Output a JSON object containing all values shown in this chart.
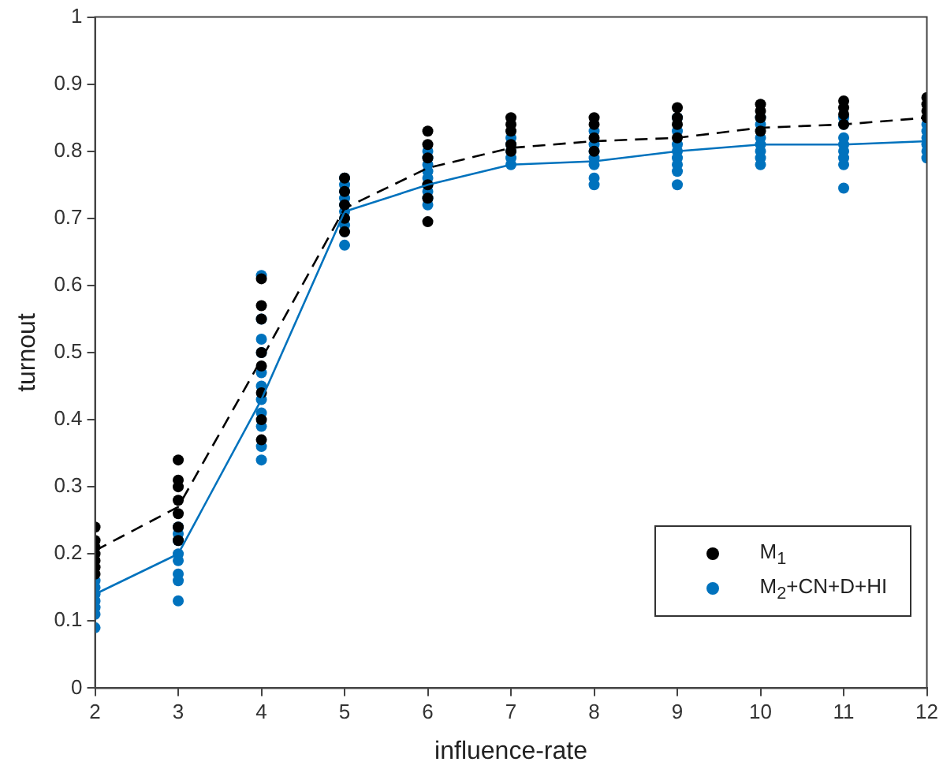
{
  "chart_data": {
    "type": "scatter",
    "xlabel": "influence-rate",
    "ylabel": "turnout",
    "xlim": [
      2,
      12
    ],
    "xticks": [
      2,
      3,
      4,
      5,
      6,
      7,
      8,
      9,
      10,
      11,
      12
    ],
    "ylim": [
      0,
      1
    ],
    "yticks": [
      0,
      0.1,
      0.2,
      0.3,
      0.4,
      0.5,
      0.6,
      0.7,
      0.8,
      0.9,
      1
    ],
    "grid": false,
    "legend": "bottom right",
    "marker": "circle",
    "series": [
      {
        "name": "M$_{1}$",
        "type": "scatter",
        "color": "#000000",
        "x": [
          2,
          2,
          2,
          2,
          2,
          2,
          2,
          3,
          3,
          3,
          3,
          3,
          3,
          3,
          4,
          4,
          4,
          4,
          4,
          4,
          4,
          4,
          5,
          5,
          5,
          5,
          5,
          6,
          6,
          6,
          6,
          6,
          6,
          7,
          7,
          7,
          7,
          7,
          8,
          8,
          8,
          8,
          9,
          9,
          9,
          9,
          10,
          10,
          10,
          10,
          11,
          11,
          11,
          11,
          12,
          12,
          12,
          12
        ],
        "values": [
          0.24,
          0.22,
          0.21,
          0.2,
          0.19,
          0.18,
          0.17,
          0.34,
          0.31,
          0.3,
          0.28,
          0.26,
          0.24,
          0.22,
          0.61,
          0.57,
          0.55,
          0.5,
          0.48,
          0.44,
          0.4,
          0.37,
          0.76,
          0.74,
          0.72,
          0.7,
          0.68,
          0.83,
          0.81,
          0.79,
          0.75,
          0.73,
          0.695,
          0.85,
          0.84,
          0.83,
          0.81,
          0.8,
          0.85,
          0.84,
          0.82,
          0.8,
          0.865,
          0.85,
          0.84,
          0.82,
          0.87,
          0.86,
          0.85,
          0.83,
          0.875,
          0.865,
          0.855,
          0.84,
          0.88,
          0.87,
          0.86,
          0.85
        ]
      },
      {
        "name": "M$_{2}$+CN+D+HI",
        "type": "scatter",
        "color": "#0072bd",
        "x": [
          2,
          2,
          2,
          2,
          2,
          2,
          2,
          3,
          3,
          3,
          3,
          3,
          3,
          3,
          3,
          4,
          4,
          4,
          4,
          4,
          4,
          4,
          4,
          4,
          4,
          4,
          5,
          5,
          5,
          5,
          5,
          5,
          5,
          5,
          5,
          5,
          6,
          6,
          6,
          6,
          6,
          6,
          6,
          6,
          6,
          7,
          7,
          7,
          7,
          7,
          8,
          8,
          8,
          8,
          8,
          8,
          8,
          9,
          9,
          9,
          9,
          9,
          9,
          9,
          9,
          10,
          10,
          10,
          10,
          10,
          10,
          10,
          11,
          11,
          11,
          11,
          11,
          11,
          11,
          11,
          12,
          12,
          12,
          12,
          12,
          12
        ],
        "values": [
          0.16,
          0.15,
          0.14,
          0.13,
          0.12,
          0.11,
          0.09,
          0.24,
          0.23,
          0.22,
          0.2,
          0.19,
          0.17,
          0.16,
          0.13,
          0.615,
          0.55,
          0.52,
          0.5,
          0.47,
          0.45,
          0.43,
          0.41,
          0.39,
          0.36,
          0.34,
          0.76,
          0.75,
          0.74,
          0.73,
          0.72,
          0.71,
          0.7,
          0.69,
          0.68,
          0.66,
          0.8,
          0.79,
          0.78,
          0.77,
          0.76,
          0.75,
          0.74,
          0.73,
          0.72,
          0.82,
          0.81,
          0.8,
          0.79,
          0.78,
          0.83,
          0.81,
          0.8,
          0.79,
          0.78,
          0.76,
          0.75,
          0.85,
          0.83,
          0.81,
          0.8,
          0.79,
          0.78,
          0.77,
          0.75,
          0.85,
          0.84,
          0.82,
          0.81,
          0.8,
          0.79,
          0.78,
          0.85,
          0.84,
          0.82,
          0.81,
          0.8,
          0.79,
          0.78,
          0.745,
          0.84,
          0.83,
          0.82,
          0.81,
          0.8,
          0.79
        ]
      },
      {
        "type": "line",
        "color": "#000000",
        "line_style": "dashed",
        "marker": "none",
        "x": [
          2,
          3,
          4,
          5,
          6,
          7,
          8,
          9,
          10,
          11,
          12
        ],
        "values": [
          0.205,
          0.27,
          0.49,
          0.715,
          0.775,
          0.805,
          0.815,
          0.82,
          0.835,
          0.84,
          0.85
        ]
      },
      {
        "type": "line",
        "color": "#0072bd",
        "line_style": "solid",
        "marker": "none",
        "x": [
          2,
          3,
          4,
          5,
          6,
          7,
          8,
          9,
          10,
          11,
          12
        ],
        "values": [
          0.14,
          0.2,
          0.43,
          0.71,
          0.75,
          0.78,
          0.785,
          0.8,
          0.81,
          0.81,
          0.815
        ]
      }
    ]
  }
}
